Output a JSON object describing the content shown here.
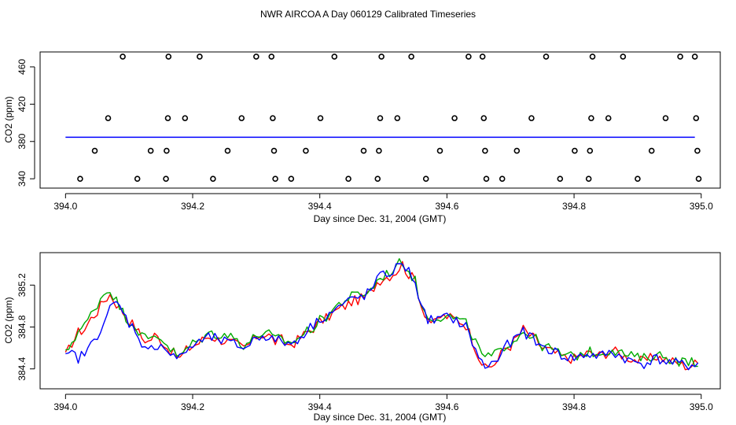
{
  "title": "NWR AIRCOA A  Day 060129  Calibrated Timeseries",
  "chart_data": [
    {
      "type": "scatter",
      "xlabel": "Day since Dec. 31, 2004 (GMT)",
      "ylabel": "CO2 (ppm)",
      "xlim": [
        393.96,
        395.03
      ],
      "ylim": [
        330,
        476
      ],
      "x_ticks": [
        "394.0",
        "394.2",
        "394.4",
        "394.6",
        "394.8",
        "395.0"
      ],
      "y_ticks": [
        "340",
        "380",
        "420",
        "460"
      ],
      "reference_line": {
        "y": 384.5,
        "x": [
          394.0,
          394.99
        ],
        "color": "#0000ff"
      },
      "points": [
        {
          "x": 394.023,
          "y": 340
        },
        {
          "x": 394.046,
          "y": 370
        },
        {
          "x": 394.067,
          "y": 405
        },
        {
          "x": 394.09,
          "y": 471
        },
        {
          "x": 394.113,
          "y": 340
        },
        {
          "x": 394.134,
          "y": 370
        },
        {
          "x": 394.158,
          "y": 340
        },
        {
          "x": 394.159,
          "y": 370
        },
        {
          "x": 394.161,
          "y": 405
        },
        {
          "x": 394.162,
          "y": 471
        },
        {
          "x": 394.188,
          "y": 405
        },
        {
          "x": 394.211,
          "y": 471
        },
        {
          "x": 394.232,
          "y": 340
        },
        {
          "x": 394.255,
          "y": 370
        },
        {
          "x": 394.277,
          "y": 405
        },
        {
          "x": 394.3,
          "y": 471
        },
        {
          "x": 394.324,
          "y": 471
        },
        {
          "x": 394.326,
          "y": 405
        },
        {
          "x": 394.328,
          "y": 370
        },
        {
          "x": 394.33,
          "y": 340
        },
        {
          "x": 394.355,
          "y": 340
        },
        {
          "x": 394.378,
          "y": 370
        },
        {
          "x": 394.401,
          "y": 405
        },
        {
          "x": 394.423,
          "y": 471
        },
        {
          "x": 394.445,
          "y": 340
        },
        {
          "x": 394.469,
          "y": 370
        },
        {
          "x": 394.491,
          "y": 340
        },
        {
          "x": 394.493,
          "y": 370
        },
        {
          "x": 394.495,
          "y": 405
        },
        {
          "x": 394.497,
          "y": 471
        },
        {
          "x": 394.522,
          "y": 405
        },
        {
          "x": 394.544,
          "y": 471
        },
        {
          "x": 394.567,
          "y": 340
        },
        {
          "x": 394.589,
          "y": 370
        },
        {
          "x": 394.612,
          "y": 405
        },
        {
          "x": 394.634,
          "y": 471
        },
        {
          "x": 394.656,
          "y": 471
        },
        {
          "x": 394.658,
          "y": 405
        },
        {
          "x": 394.66,
          "y": 370
        },
        {
          "x": 394.662,
          "y": 340
        },
        {
          "x": 394.687,
          "y": 340
        },
        {
          "x": 394.71,
          "y": 370
        },
        {
          "x": 394.733,
          "y": 405
        },
        {
          "x": 394.756,
          "y": 471
        },
        {
          "x": 394.778,
          "y": 340
        },
        {
          "x": 394.801,
          "y": 370
        },
        {
          "x": 394.823,
          "y": 340
        },
        {
          "x": 394.825,
          "y": 370
        },
        {
          "x": 394.827,
          "y": 405
        },
        {
          "x": 394.829,
          "y": 471
        },
        {
          "x": 394.854,
          "y": 405
        },
        {
          "x": 394.877,
          "y": 471
        },
        {
          "x": 394.9,
          "y": 340
        },
        {
          "x": 394.922,
          "y": 370
        },
        {
          "x": 394.944,
          "y": 405
        },
        {
          "x": 394.967,
          "y": 471
        },
        {
          "x": 394.99,
          "y": 471
        },
        {
          "x": 394.992,
          "y": 405
        },
        {
          "x": 394.994,
          "y": 370
        },
        {
          "x": 394.996,
          "y": 340
        }
      ]
    },
    {
      "type": "line",
      "xlabel": "Day since Dec. 31, 2004 (GMT)",
      "ylabel": "CO2 (ppm)",
      "xlim": [
        393.96,
        395.03
      ],
      "ylim": [
        384.21,
        385.51
      ],
      "x_ticks": [
        "394.0",
        "394.2",
        "394.4",
        "394.6",
        "394.8",
        "395.0"
      ],
      "y_ticks": [
        "384.4",
        "384.8",
        "385.2"
      ],
      "x_start": 394.0,
      "x_step": 0.01,
      "series": [
        {
          "color": "#ff0000",
          "values": [
            384.52,
            384.65,
            384.75,
            384.78,
            384.88,
            384.95,
            385.05,
            385.11,
            385.02,
            384.95,
            384.86,
            384.8,
            384.7,
            384.66,
            384.72,
            384.68,
            384.6,
            384.55,
            384.5,
            384.58,
            384.62,
            384.65,
            384.7,
            384.71,
            384.68,
            384.67,
            384.65,
            384.63,
            384.6,
            384.64,
            384.71,
            384.73,
            384.72,
            384.66,
            384.68,
            384.63,
            384.65,
            384.7,
            384.75,
            384.79,
            384.85,
            384.88,
            384.93,
            384.97,
            385.0,
            385.04,
            385.06,
            385.08,
            385.13,
            385.23,
            385.27,
            385.29,
            385.33,
            385.4,
            385.3,
            385.25,
            385.0,
            384.88,
            384.83,
            384.9,
            384.9,
            384.88,
            384.86,
            384.82,
            384.68,
            384.52,
            384.4,
            384.43,
            384.48,
            384.6,
            384.62,
            384.7,
            384.78,
            384.72,
            384.68,
            384.6,
            384.58,
            384.55,
            384.52,
            384.5,
            384.5,
            384.52,
            384.55,
            384.54,
            384.53,
            384.55,
            384.58,
            384.55,
            384.52,
            384.5,
            384.48,
            384.47,
            384.5,
            384.52,
            384.5,
            384.48,
            384.46,
            384.44,
            384.42,
            384.45
          ],
          "noise_amplitude": 0.05
        },
        {
          "color": "#00aa00",
          "values": [
            384.54,
            384.66,
            384.76,
            384.81,
            384.92,
            385.02,
            385.12,
            385.16,
            385.05,
            384.94,
            384.86,
            384.81,
            384.72,
            384.67,
            384.72,
            384.7,
            384.63,
            384.56,
            384.51,
            384.59,
            384.64,
            384.67,
            384.72,
            384.74,
            384.73,
            384.73,
            384.71,
            384.68,
            384.63,
            384.66,
            384.72,
            384.74,
            384.73,
            384.68,
            384.69,
            384.65,
            384.67,
            384.71,
            384.76,
            384.8,
            384.86,
            384.9,
            384.96,
            385.02,
            385.06,
            385.09,
            385.11,
            385.12,
            385.15,
            385.24,
            385.29,
            385.32,
            385.38,
            385.43,
            385.33,
            385.24,
            384.99,
            384.91,
            384.89,
            384.9,
            384.9,
            384.89,
            384.86,
            384.83,
            384.72,
            384.59,
            384.5,
            384.52,
            384.55,
            384.62,
            384.65,
            384.7,
            384.76,
            384.73,
            384.68,
            384.62,
            384.6,
            384.57,
            384.54,
            384.52,
            384.52,
            384.54,
            384.56,
            384.56,
            384.55,
            384.57,
            384.59,
            384.56,
            384.54,
            384.52,
            384.51,
            384.5,
            384.52,
            384.54,
            384.52,
            384.5,
            384.48,
            384.47,
            384.46,
            384.47
          ],
          "noise_amplitude": 0.05
        },
        {
          "color": "#0000ff",
          "values": [
            384.5,
            384.55,
            384.5,
            384.55,
            384.62,
            384.73,
            384.85,
            384.97,
            385.03,
            384.94,
            384.84,
            384.77,
            384.65,
            384.56,
            384.62,
            384.64,
            384.57,
            384.52,
            384.5,
            384.58,
            384.62,
            384.65,
            384.69,
            384.7,
            384.68,
            384.66,
            384.64,
            384.63,
            384.6,
            384.64,
            384.7,
            384.72,
            384.71,
            384.66,
            384.68,
            384.63,
            384.66,
            384.71,
            384.77,
            384.82,
            384.88,
            384.91,
            384.95,
            384.99,
            385.03,
            385.06,
            385.08,
            385.1,
            385.14,
            385.26,
            385.29,
            385.32,
            385.36,
            385.41,
            385.33,
            385.24,
            384.97,
            384.88,
            384.86,
            384.88,
            384.89,
            384.88,
            384.84,
            384.8,
            384.66,
            384.5,
            384.42,
            384.45,
            384.49,
            384.61,
            384.64,
            384.7,
            384.76,
            384.71,
            384.66,
            384.61,
            384.59,
            384.56,
            384.53,
            384.51,
            384.5,
            384.52,
            384.54,
            384.53,
            384.52,
            384.54,
            384.56,
            384.53,
            384.5,
            384.47,
            384.46,
            384.45,
            384.48,
            384.5,
            384.48,
            384.46,
            384.45,
            384.44,
            384.43,
            384.45
          ],
          "noise_amplitude": 0.05
        }
      ]
    }
  ]
}
